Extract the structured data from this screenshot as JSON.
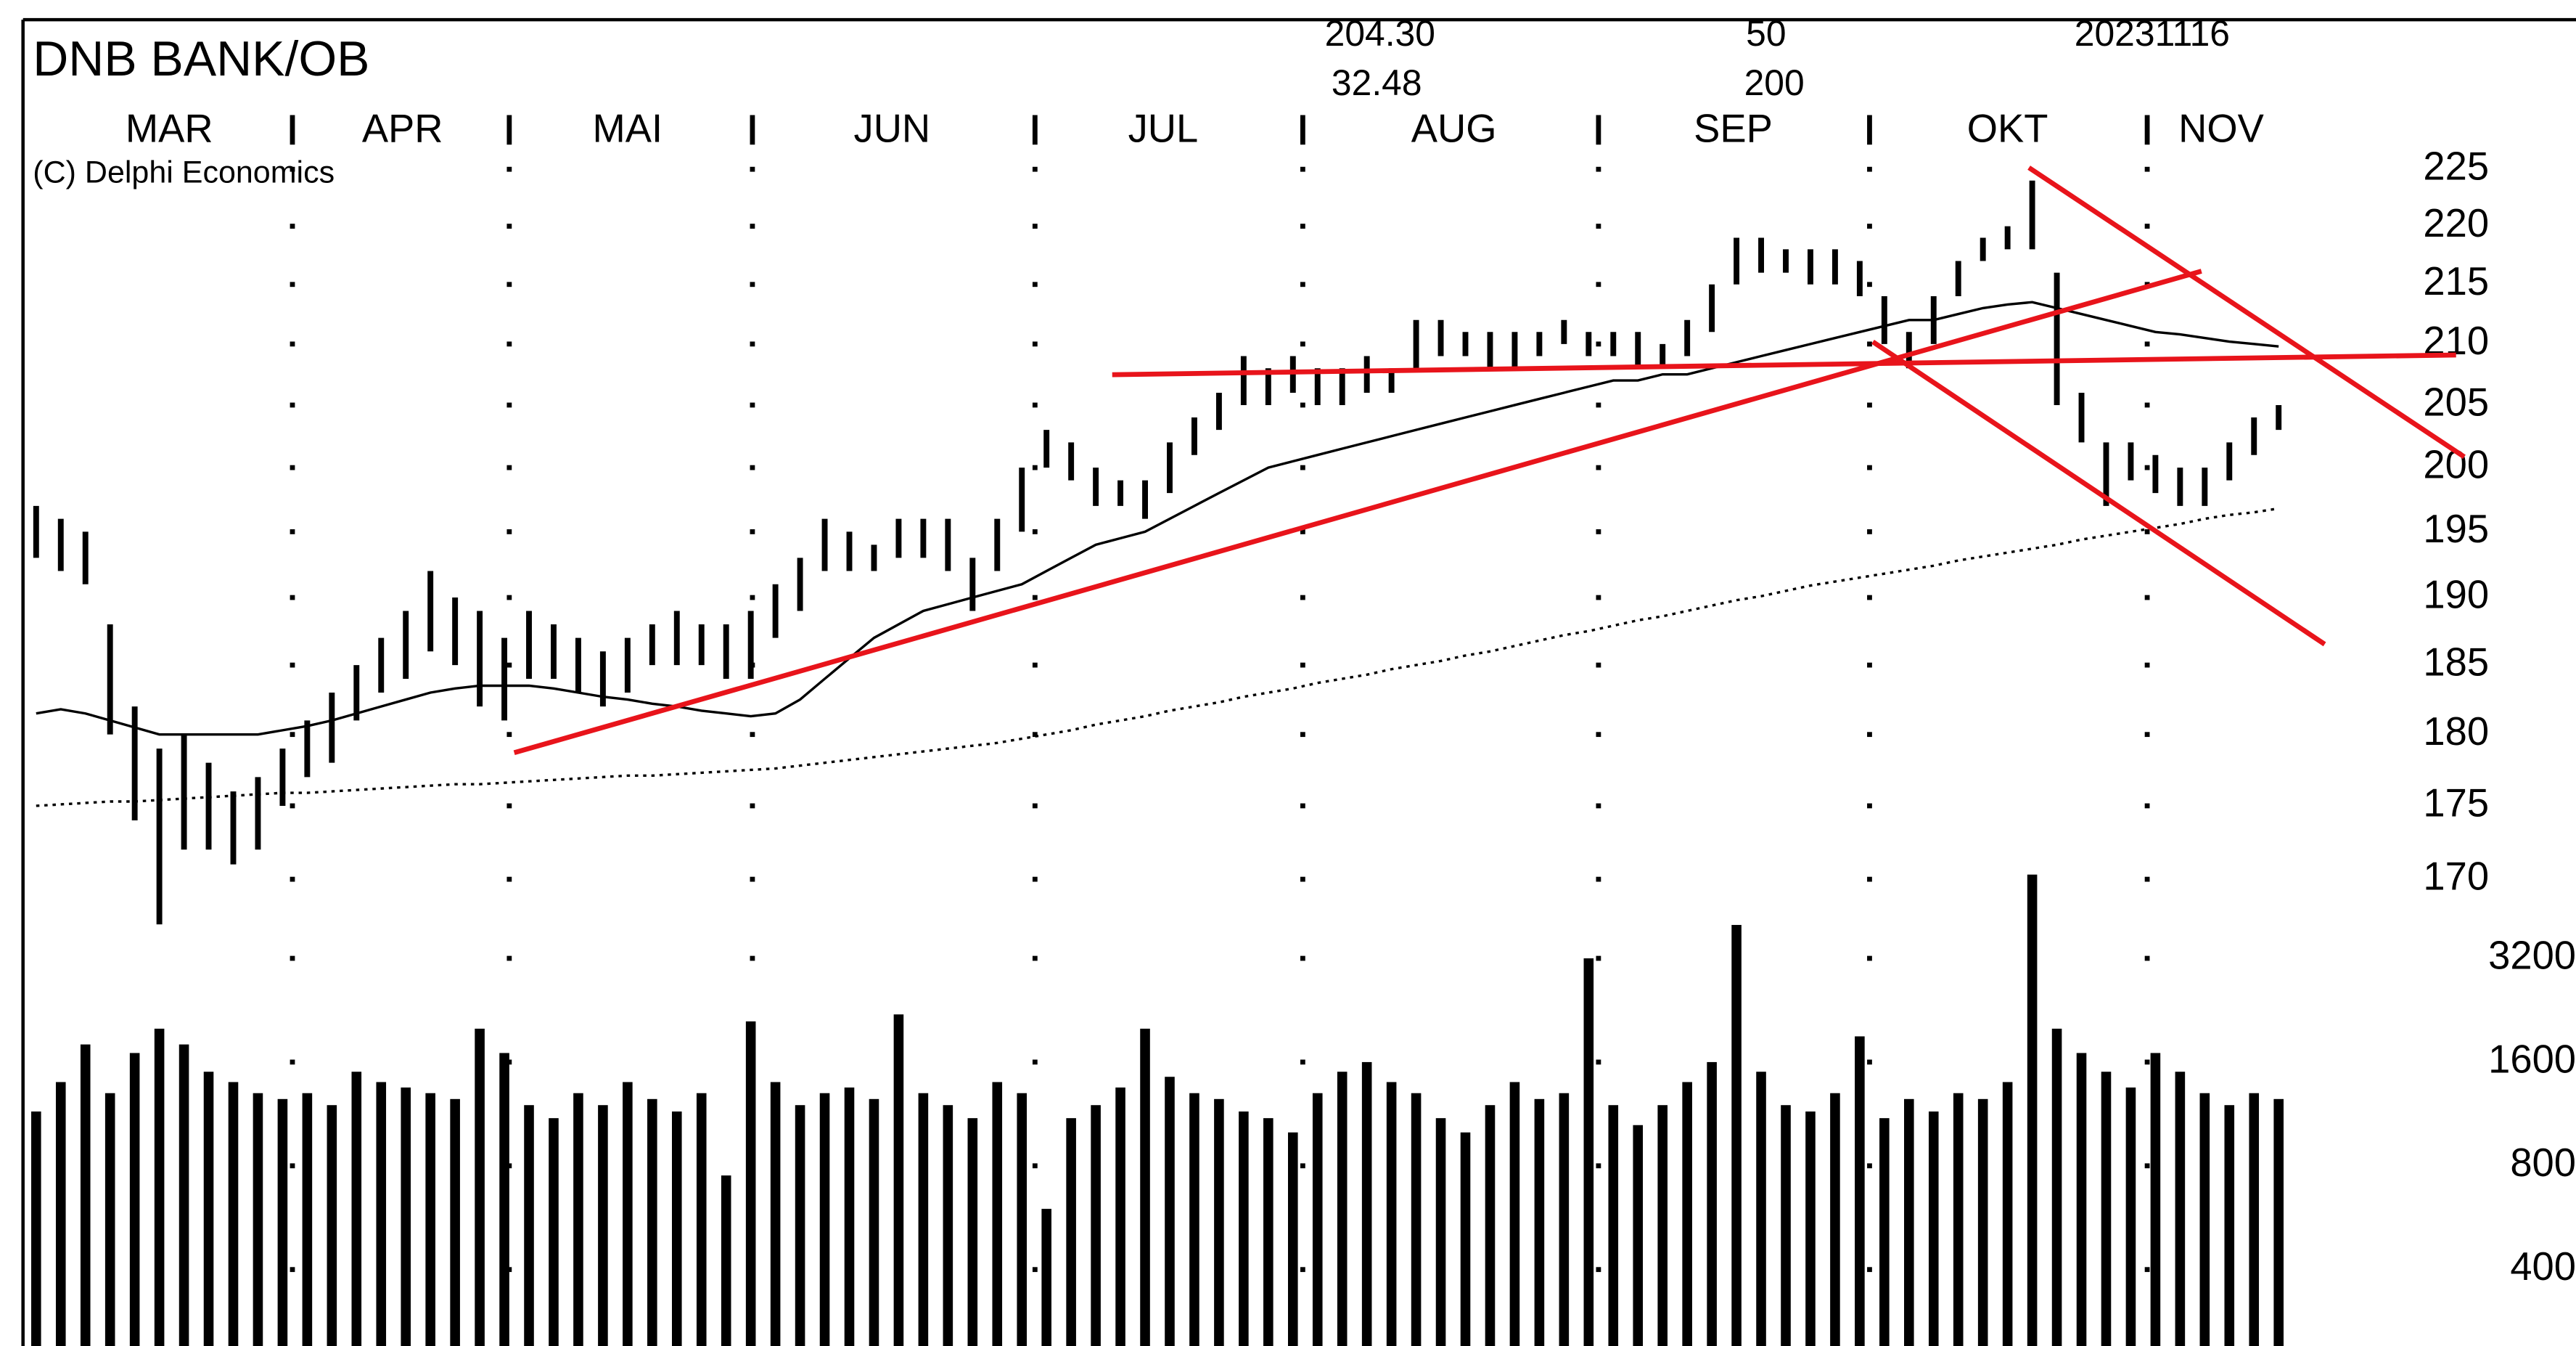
{
  "chart_data": {
    "type": "ohlc",
    "title": "DNB BANK/OB",
    "subtitle": "(C) Delphi Economics",
    "annotations": [
      "204.30",
      "32.48",
      "50",
      "200",
      "20231116"
    ],
    "months": [
      "MAR",
      "APR",
      "MAI",
      "JUN",
      "JUL",
      "AUG",
      "SEP",
      "OKT",
      "NOV"
    ],
    "log_scale": true,
    "color": "#000000",
    "ylim": [
      170,
      225
    ],
    "yticks": [
      225,
      220,
      215,
      210,
      205,
      200,
      195,
      190,
      185,
      180,
      175,
      170
    ],
    "high": [
      197,
      196,
      195,
      188,
      182,
      179,
      180,
      178,
      176,
      177,
      179,
      181,
      183,
      185,
      187,
      189,
      192,
      190,
      189,
      187,
      189,
      188,
      187,
      186,
      187,
      188,
      189,
      188,
      188,
      189,
      191,
      193,
      196,
      195,
      194,
      196,
      196,
      196,
      193,
      196,
      200,
      203,
      202,
      200,
      199,
      199,
      202,
      204,
      206,
      209,
      208,
      209,
      208,
      208,
      209,
      208,
      212,
      212,
      211,
      211,
      211,
      211,
      212,
      211,
      211,
      211,
      210,
      212,
      215,
      219,
      219,
      218,
      218,
      218,
      217,
      214,
      211,
      214,
      217,
      219,
      220,
      224,
      216,
      206,
      202,
      202,
      201,
      200,
      200,
      202,
      204,
      205
    ],
    "low": [
      193,
      192,
      191,
      180,
      174,
      167,
      172,
      172,
      171,
      172,
      175,
      177,
      178,
      181,
      183,
      184,
      186,
      185,
      182,
      181,
      184,
      184,
      183,
      182,
      183,
      185,
      185,
      185,
      184,
      184,
      187,
      189,
      192,
      192,
      192,
      193,
      193,
      192,
      189,
      192,
      195,
      200,
      199,
      197,
      197,
      196,
      198,
      201,
      203,
      205,
      205,
      206,
      205,
      205,
      206,
      206,
      208,
      209,
      209,
      208,
      208,
      209,
      210,
      209,
      209,
      208,
      208,
      209,
      211,
      215,
      216,
      216,
      215,
      215,
      214,
      210,
      208,
      210,
      214,
      217,
      218,
      218,
      205,
      202,
      197,
      199,
      198,
      197,
      197,
      199,
      201,
      203
    ],
    "moving_averages": [
      {
        "style": "solid",
        "values": [
          181.5,
          181.8,
          181.5,
          181,
          180.5,
          180,
          180,
          180,
          180,
          180,
          180.3,
          180.6,
          181,
          181.5,
          182,
          182.5,
          183,
          183.3,
          183.5,
          183.5,
          183.5,
          183.3,
          183,
          182.7,
          182.5,
          182.2,
          182,
          181.7,
          181.5,
          181.3,
          181.5,
          182.5,
          184,
          185.5,
          187,
          188,
          189,
          189.5,
          190,
          190.5,
          191,
          192,
          193,
          194,
          194.5,
          195,
          196,
          197,
          198,
          199,
          200,
          200.5,
          201,
          201.5,
          202,
          202.5,
          203,
          203.5,
          204,
          204.5,
          205,
          205.5,
          206,
          206.5,
          207,
          207,
          207.5,
          207.5,
          208,
          208.5,
          209,
          209.5,
          210,
          210.5,
          211,
          211.5,
          212,
          212,
          212.5,
          213,
          213.3,
          213.5,
          213,
          212.5,
          212,
          211.5,
          211,
          210.8,
          210.5,
          210.2,
          210,
          209.8
        ]
      },
      {
        "style": "dotted",
        "values": [
          175.0,
          175.1,
          175.2,
          175.3,
          175.3,
          175.4,
          175.5,
          175.6,
          175.7,
          175.8,
          175.9,
          175.9,
          176.0,
          176.1,
          176.2,
          176.3,
          176.4,
          176.5,
          176.5,
          176.6,
          176.7,
          176.8,
          176.9,
          177.0,
          177.1,
          177.1,
          177.2,
          177.3,
          177.4,
          177.5,
          177.6,
          177.8,
          178.0,
          178.2,
          178.4,
          178.6,
          178.8,
          179.0,
          179.2,
          179.4,
          179.7,
          180.0,
          180.3,
          180.7,
          181.0,
          181.3,
          181.7,
          182.0,
          182.3,
          182.7,
          183.0,
          183.3,
          183.7,
          184.0,
          184.3,
          184.7,
          185.0,
          185.3,
          185.7,
          186.0,
          186.4,
          186.8,
          187.2,
          187.5,
          187.9,
          188.3,
          188.6,
          189.0,
          189.4,
          189.8,
          190.1,
          190.5,
          190.9,
          191.2,
          191.5,
          191.8,
          192.1,
          192.4,
          192.8,
          193.1,
          193.4,
          193.7,
          194.0,
          194.4,
          194.7,
          195.0,
          195.3,
          195.6,
          196.0,
          196.3,
          196.5,
          196.8
        ]
      }
    ],
    "volume": {
      "log_scale": true,
      "ylim": [
        240,
        6400
      ],
      "yticks": [
        3200,
        1600,
        800,
        400
      ],
      "values": [
        1150,
        1400,
        1800,
        1300,
        1700,
        2000,
        1800,
        1500,
        1400,
        1300,
        1250,
        1300,
        1200,
        1500,
        1400,
        1350,
        1300,
        1250,
        2000,
        1700,
        1200,
        1100,
        1300,
        1200,
        1400,
        1250,
        1150,
        1300,
        750,
        2100,
        1400,
        1200,
        1300,
        1350,
        1250,
        2200,
        1300,
        1200,
        1100,
        1400,
        1300,
        600,
        1100,
        1200,
        1350,
        2000,
        1450,
        1300,
        1250,
        1150,
        1100,
        1000,
        1300,
        1500,
        1600,
        1400,
        1300,
        1100,
        1000,
        1200,
        1400,
        1250,
        1300,
        3200,
        1200,
        1050,
        1200,
        1400,
        1600,
        4000,
        1500,
        1200,
        1150,
        1300,
        1900,
        1100,
        1250,
        1150,
        1300,
        1250,
        1400,
        5600,
        2000,
        1700,
        1500,
        1350,
        1700,
        1500,
        1300,
        1200,
        1300,
        1250
      ]
    },
    "trend_color": "#e8141b"
  }
}
